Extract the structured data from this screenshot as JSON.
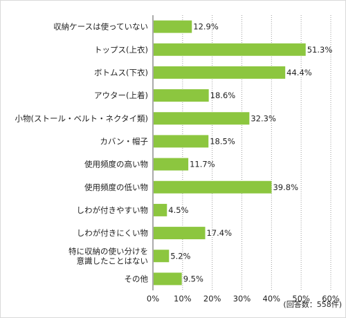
{
  "chart_data": {
    "type": "bar",
    "orientation": "horizontal",
    "categories": [
      "収納ケースは使っていない",
      "トップス(上衣)",
      "ボトムス(下衣)",
      "アウター(上着)",
      "小物(ストール・ベルト・ネクタイ類)",
      "カバン・帽子",
      "使用頻度の高い物",
      "使用頻度の低い物",
      "しわが付きやすい物",
      "しわが付きにくい物",
      [
        "特に収納の使い分けを",
        "意識したことはない"
      ],
      "その他"
    ],
    "values": [
      12.9,
      51.3,
      44.4,
      18.6,
      32.3,
      18.5,
      11.7,
      39.8,
      4.5,
      17.4,
      5.2,
      9.5
    ],
    "value_labels": [
      "12.9%",
      "51.3%",
      "44.4%",
      "18.6%",
      "32.3%",
      "18.5%",
      "11.7%",
      "39.8%",
      "4.5%",
      "17.4%",
      "5.2%",
      "9.5%"
    ],
    "xlim": [
      0,
      60
    ],
    "xticks": [
      0,
      10,
      20,
      30,
      40,
      50,
      60
    ],
    "xtick_labels": [
      "0%",
      "10%",
      "20%",
      "30%",
      "40%",
      "50%",
      "60%"
    ],
    "grid": "vertical dotted",
    "bar_color": "#8cc63f",
    "note": "(回答数：558件)"
  }
}
